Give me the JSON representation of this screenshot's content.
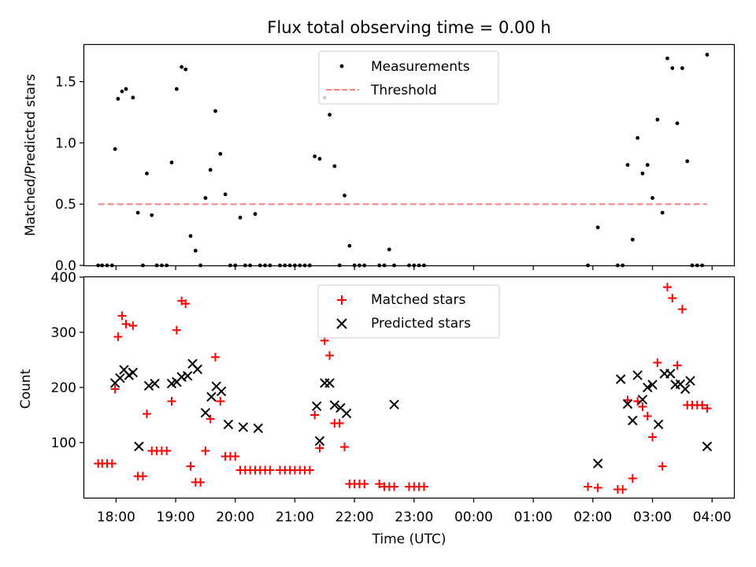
{
  "chart_data": [
    {
      "type": "scatter",
      "title": "Flux total observing time = 0.00 h",
      "ylabel": "Matched/Predicted stars",
      "xlabel": "",
      "xlim": [
        "17:28",
        "04:22"
      ],
      "ylim": [
        0,
        1.8
      ],
      "yticks": [
        0.0,
        0.5,
        1.0,
        1.5
      ],
      "ytick_labels": [
        "0.0",
        "0.5",
        "1.0",
        "1.5"
      ],
      "xticks": [
        "18:00",
        "19:00",
        "20:00",
        "21:00",
        "22:00",
        "23:00",
        "00:00",
        "01:00",
        "02:00",
        "03:00",
        "04:00"
      ],
      "grid": false,
      "legend": {
        "location": "upper center",
        "entries": [
          "Measurements",
          "Threshold"
        ]
      },
      "series": [
        {
          "name": "Measurements",
          "marker": "dot",
          "color": "#000000",
          "x": [
            "17:42",
            "17:46",
            "17:51",
            "17:56",
            "17:59",
            "18:02",
            "18:06",
            "18:10",
            "18:17",
            "18:22",
            "18:27",
            "18:31",
            "18:36",
            "18:41",
            "18:46",
            "18:51",
            "18:56",
            "19:01",
            "19:06",
            "19:10",
            "19:15",
            "19:20",
            "19:25",
            "19:30",
            "19:35",
            "19:40",
            "19:45",
            "19:50",
            "19:55",
            "20:00",
            "20:05",
            "20:10",
            "20:15",
            "20:20",
            "20:25",
            "20:30",
            "20:35",
            "20:45",
            "20:50",
            "20:55",
            "21:00",
            "21:05",
            "21:10",
            "21:15",
            "21:20",
            "21:25",
            "21:30",
            "21:35",
            "21:40",
            "21:45",
            "21:50",
            "21:55",
            "22:00",
            "22:05",
            "22:10",
            "22:25",
            "22:30",
            "22:35",
            "22:40",
            "22:55",
            "23:00",
            "23:05",
            "23:10",
            "01:55",
            "02:05",
            "02:25",
            "02:30",
            "02:35",
            "02:40",
            "02:45",
            "02:50",
            "02:55",
            "03:00",
            "03:05",
            "03:10",
            "03:15",
            "03:20",
            "03:25",
            "03:30",
            "03:35",
            "03:40",
            "03:45",
            "03:50",
            "03:55"
          ],
          "y": [
            0,
            0,
            0,
            0,
            0.95,
            1.36,
            1.42,
            1.44,
            1.37,
            0.43,
            0,
            0.75,
            0.41,
            0,
            0,
            0,
            0.84,
            1.44,
            1.62,
            1.6,
            0.24,
            0.12,
            0,
            0.55,
            0.78,
            1.26,
            0.91,
            0.58,
            0,
            0,
            0.39,
            0,
            0,
            0.42,
            0,
            0,
            0,
            0,
            0,
            0,
            0,
            0,
            0,
            0,
            0.89,
            0.87,
            1.37,
            1.23,
            0.81,
            0,
            0.57,
            0.16,
            0,
            0,
            0,
            0,
            0,
            0.13,
            0,
            0,
            0,
            0,
            0,
            0,
            0.31,
            0,
            0,
            0.82,
            0.21,
            1.04,
            0.75,
            0.82,
            0.55,
            1.19,
            0.43,
            1.69,
            1.61,
            1.16,
            1.61,
            0.85,
            0,
            0,
            0,
            1.72
          ]
        },
        {
          "name": "Threshold",
          "style": "dashed",
          "color": "#ff7f7f",
          "x": [
            "17:42",
            "03:55"
          ],
          "y": [
            0.5,
            0.5
          ]
        }
      ]
    },
    {
      "type": "scatter",
      "title": "",
      "ylabel": "Count",
      "xlabel": "Time (UTC)",
      "xlim": [
        "17:28",
        "04:22"
      ],
      "ylim": [
        0,
        400
      ],
      "yticks": [
        100,
        200,
        300,
        400
      ],
      "ytick_labels": [
        "100",
        "200",
        "300",
        "400"
      ],
      "xticks": [
        "18:00",
        "19:00",
        "20:00",
        "21:00",
        "22:00",
        "23:00",
        "00:00",
        "01:00",
        "02:00",
        "03:00",
        "04:00"
      ],
      "grid": false,
      "legend": {
        "location": "upper center",
        "entries": [
          "Matched stars",
          "Predicted stars"
        ]
      },
      "series": [
        {
          "name": "Matched stars",
          "marker": "+",
          "color": "#ff0000",
          "x": [
            "17:42",
            "17:46",
            "17:51",
            "17:56",
            "17:59",
            "18:02",
            "18:06",
            "18:10",
            "18:17",
            "18:22",
            "18:27",
            "18:31",
            "18:36",
            "18:41",
            "18:46",
            "18:51",
            "18:56",
            "19:01",
            "19:06",
            "19:10",
            "19:15",
            "19:20",
            "19:25",
            "19:30",
            "19:35",
            "19:40",
            "19:45",
            "19:50",
            "19:55",
            "20:00",
            "20:05",
            "20:10",
            "20:15",
            "20:20",
            "20:25",
            "20:30",
            "20:35",
            "20:45",
            "20:50",
            "20:55",
            "21:00",
            "21:05",
            "21:10",
            "21:15",
            "21:20",
            "21:25",
            "21:30",
            "21:35",
            "21:40",
            "21:45",
            "21:50",
            "21:55",
            "22:00",
            "22:05",
            "22:10",
            "22:25",
            "22:30",
            "22:35",
            "22:40",
            "22:55",
            "23:00",
            "23:05",
            "23:10",
            "01:55",
            "02:05",
            "02:25",
            "02:30",
            "02:35",
            "02:40",
            "02:45",
            "02:50",
            "02:55",
            "03:00",
            "03:05",
            "03:10",
            "03:15",
            "03:20",
            "03:25",
            "03:30",
            "03:35",
            "03:40",
            "03:45",
            "03:50",
            "03:55"
          ],
          "y": [
            62,
            62,
            62,
            62,
            197,
            292,
            330,
            315,
            312,
            39,
            39,
            152,
            85,
            85,
            85,
            85,
            175,
            304,
            357,
            352,
            57,
            28,
            28,
            85,
            143,
            255,
            175,
            75,
            75,
            75,
            50,
            50,
            50,
            50,
            50,
            50,
            50,
            50,
            50,
            50,
            50,
            50,
            50,
            50,
            150,
            90,
            285,
            258,
            135,
            135,
            92,
            25,
            25,
            25,
            25,
            25,
            20,
            20,
            20,
            20,
            20,
            20,
            20,
            20,
            18,
            15,
            15,
            177,
            35,
            175,
            165,
            148,
            110,
            245,
            57,
            382,
            362,
            240,
            342,
            168,
            168,
            168,
            168,
            162
          ]
        },
        {
          "name": "Predicted stars",
          "marker": "x",
          "color": "#000000",
          "x": [
            "17:59",
            "18:04",
            "18:08",
            "18:13",
            "18:17",
            "18:23",
            "18:33",
            "18:39",
            "18:56",
            "19:01",
            "19:06",
            "19:12",
            "19:17",
            "19:22",
            "19:30",
            "19:36",
            "19:41",
            "19:46",
            "19:53",
            "20:08",
            "20:23",
            "21:22",
            "21:25",
            "21:30",
            "21:35",
            "21:40",
            "21:46",
            "21:52",
            "22:40",
            "02:05",
            "02:28",
            "02:35",
            "02:40",
            "02:45",
            "02:50",
            "02:55",
            "03:00",
            "03:06",
            "03:12",
            "03:18",
            "03:23",
            "03:28",
            "03:33",
            "03:38",
            "03:55"
          ],
          "y": [
            208,
            217,
            232,
            222,
            227,
            93,
            203,
            207,
            207,
            210,
            219,
            221,
            243,
            233,
            154,
            183,
            202,
            193,
            133,
            128,
            126,
            166,
            103,
            208,
            208,
            168,
            163,
            153,
            169,
            62,
            215,
            170,
            140,
            222,
            178,
            200,
            205,
            133,
            225,
            225,
            205,
            206,
            197,
            212,
            93
          ]
        }
      ]
    }
  ]
}
